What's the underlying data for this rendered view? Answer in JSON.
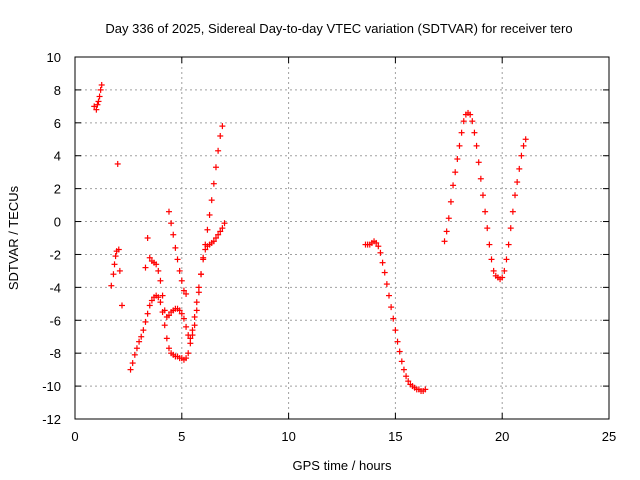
{
  "chart_data": {
    "type": "scatter",
    "title": "Day 336 of 2025, Sidereal Day-to-day VTEC variation (SDTVAR) for receiver tero",
    "xlabel": "GPS time / hours",
    "ylabel": "SDTVAR / TECUs",
    "xlim": [
      0,
      25
    ],
    "ylim": [
      -12,
      10
    ],
    "xticks": [
      0,
      5,
      10,
      15,
      20,
      25
    ],
    "yticks": [
      -12,
      -10,
      -8,
      -6,
      -4,
      -2,
      0,
      2,
      4,
      6,
      8,
      10
    ],
    "grid": true,
    "marker": "+",
    "color": "#ff0000",
    "series": [
      {
        "name": "segment-1",
        "x": [
          0.9,
          1.0,
          1.05,
          1.1,
          1.15,
          1.2,
          1.25
        ],
        "y": [
          7.0,
          6.8,
          7.1,
          7.3,
          7.6,
          8.0,
          8.3
        ]
      },
      {
        "name": "segment-2",
        "x": [
          1.7,
          1.8,
          1.85,
          1.9,
          1.95,
          2.0,
          2.05,
          2.1,
          2.2
        ],
        "y": [
          -3.9,
          -3.2,
          -2.6,
          -2.1,
          -1.8,
          3.5,
          -1.7,
          -3.0,
          -5.1
        ]
      },
      {
        "name": "segment-3",
        "x": [
          2.6,
          2.7,
          2.8,
          2.9,
          3.0,
          3.1,
          3.2,
          3.3,
          3.4,
          3.5,
          3.6,
          3.7,
          3.8,
          3.9,
          4.0,
          4.1,
          4.2,
          4.3,
          4.4,
          4.5,
          4.6,
          4.7,
          4.8,
          4.9,
          5.0,
          5.1,
          5.2,
          5.3,
          5.4,
          5.5,
          5.6,
          5.7,
          5.8,
          5.9,
          6.0,
          6.1,
          6.2,
          6.3,
          6.4,
          6.5,
          6.6,
          6.7,
          6.8,
          6.9
        ],
        "y": [
          -9.0,
          -8.6,
          -8.1,
          -7.7,
          -7.3,
          -7.0,
          -6.6,
          -6.1,
          -5.6,
          -5.1,
          -4.8,
          -4.6,
          -4.5,
          -4.6,
          -4.9,
          -5.5,
          -6.3,
          -7.1,
          -7.7,
          -8.0,
          -8.1,
          -8.2,
          -8.2,
          -8.3,
          -8.3,
          -8.4,
          -8.3,
          -8.0,
          -7.4,
          -6.6,
          -5.8,
          -4.9,
          -4.0,
          -3.2,
          -2.3,
          -1.4,
          -0.5,
          0.4,
          1.3,
          2.3,
          3.3,
          4.3,
          5.2,
          5.8
        ]
      },
      {
        "name": "segment-4",
        "x": [
          3.3,
          3.4,
          3.5,
          3.6,
          3.7,
          3.8,
          3.9,
          4.0,
          4.1,
          4.2,
          4.3,
          4.4,
          4.5,
          4.6,
          4.7,
          4.8,
          4.9,
          5.0,
          5.1,
          5.2,
          5.3,
          5.4,
          5.5,
          5.6,
          5.7,
          5.8,
          5.9,
          6.0,
          6.1,
          6.2,
          6.3,
          6.4,
          6.5,
          6.6,
          6.7,
          6.8,
          6.9,
          7.0
        ],
        "y": [
          -2.8,
          -1.0,
          -2.2,
          -2.4,
          -2.5,
          -2.6,
          -3.0,
          -3.6,
          -4.5,
          -5.4,
          -5.8,
          -5.7,
          -5.5,
          -5.4,
          -5.3,
          -5.3,
          -5.4,
          -5.6,
          -5.9,
          -6.4,
          -6.9,
          -7.1,
          -6.9,
          -6.3,
          -5.4,
          -4.3,
          -3.2,
          -2.2,
          -1.7,
          -1.5,
          -1.4,
          -1.3,
          -1.2,
          -1.0,
          -0.8,
          -0.6,
          -0.4,
          -0.1
        ]
      },
      {
        "name": "segment-5",
        "x": [
          4.4,
          4.5,
          4.6,
          4.7,
          4.8,
          4.9,
          5.0,
          5.1,
          5.2
        ],
        "y": [
          0.6,
          -0.1,
          -0.8,
          -1.6,
          -2.3,
          -3.0,
          -3.6,
          -4.2,
          -4.4
        ]
      },
      {
        "name": "segment-6",
        "x": [
          13.6,
          13.7,
          13.8,
          13.9,
          14.0,
          14.1,
          14.2,
          14.3,
          14.4,
          14.5,
          14.6,
          14.7,
          14.8,
          14.9,
          15.0,
          15.1,
          15.2,
          15.3,
          15.4,
          15.5,
          15.6,
          15.7,
          15.8,
          15.9,
          16.0,
          16.1,
          16.2,
          16.3,
          16.4
        ],
        "y": [
          -1.4,
          -1.4,
          -1.4,
          -1.3,
          -1.2,
          -1.3,
          -1.5,
          -1.9,
          -2.5,
          -3.1,
          -3.8,
          -4.5,
          -5.2,
          -5.9,
          -6.6,
          -7.3,
          -7.9,
          -8.5,
          -9.0,
          -9.4,
          -9.7,
          -9.9,
          -10.0,
          -10.1,
          -10.2,
          -10.2,
          -10.3,
          -10.3,
          -10.2
        ]
      },
      {
        "name": "segment-7",
        "x": [
          17.3,
          17.4,
          17.5,
          17.6,
          17.7,
          17.8,
          17.9,
          18.0,
          18.1,
          18.2,
          18.3,
          18.4,
          18.5,
          18.6,
          18.7,
          18.8,
          18.9,
          19.0,
          19.1,
          19.2,
          19.3,
          19.4,
          19.5,
          19.6,
          19.7,
          19.8,
          19.9,
          20.0,
          20.1,
          20.2,
          20.3,
          20.4,
          20.5,
          20.6,
          20.7,
          20.8,
          20.9,
          21.0,
          21.1
        ],
        "y": [
          -1.2,
          -0.6,
          0.2,
          1.2,
          2.2,
          3.0,
          3.8,
          4.6,
          5.4,
          6.1,
          6.5,
          6.6,
          6.5,
          6.1,
          5.4,
          4.6,
          3.6,
          2.6,
          1.6,
          0.6,
          -0.4,
          -1.4,
          -2.3,
          -3.0,
          -3.3,
          -3.4,
          -3.5,
          -3.4,
          -3.0,
          -2.3,
          -1.4,
          -0.4,
          0.6,
          1.6,
          2.4,
          3.2,
          4.0,
          4.6,
          5.0
        ]
      }
    ]
  }
}
